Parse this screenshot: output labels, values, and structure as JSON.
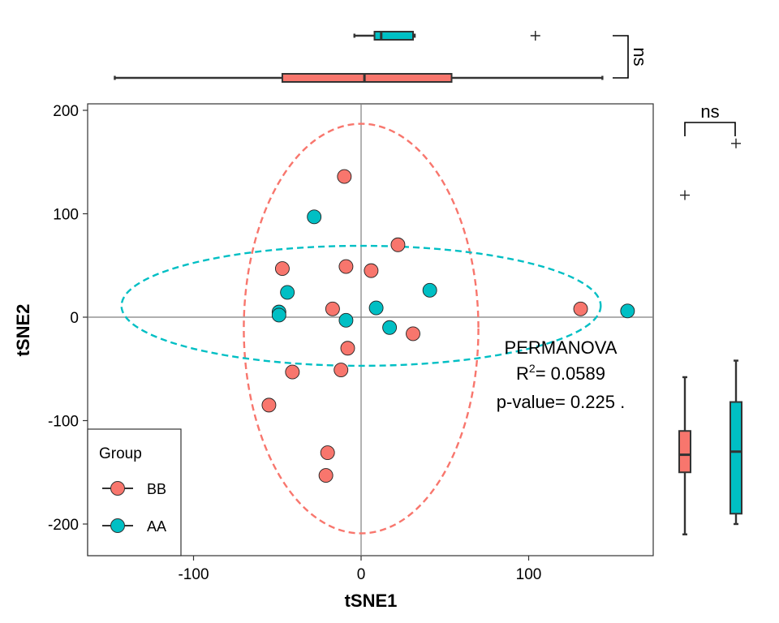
{
  "chart_data": {
    "type": "scatter",
    "title": "",
    "xlabel": "tSNE1",
    "ylabel": "tSNE2",
    "xlim": [
      -165,
      175
    ],
    "ylim": [
      -230,
      205
    ],
    "xticks": [
      -100,
      0,
      100
    ],
    "yticks": [
      -200,
      -100,
      0,
      100,
      200
    ],
    "grid": false,
    "reference_lines": {
      "x": 0,
      "y": 0
    },
    "legend": {
      "title": "Group",
      "position": "bottom-left"
    },
    "series": [
      {
        "name": "BB",
        "color": "#F8766D",
        "points": [
          {
            "x": -10,
            "y": 136
          },
          {
            "x": 22,
            "y": 70
          },
          {
            "x": -47,
            "y": 47
          },
          {
            "x": -9,
            "y": 49
          },
          {
            "x": 6,
            "y": 45
          },
          {
            "x": -17,
            "y": 8
          },
          {
            "x": 31,
            "y": -16
          },
          {
            "x": -8,
            "y": -30
          },
          {
            "x": -41,
            "y": -53
          },
          {
            "x": -12,
            "y": -51
          },
          {
            "x": -55,
            "y": -85
          },
          {
            "x": -20,
            "y": -131
          },
          {
            "x": -21,
            "y": -153
          },
          {
            "x": 131,
            "y": 8
          }
        ],
        "ellipse": {
          "cx": 0,
          "cy": -11,
          "rx": 70,
          "ry": 198,
          "angle_deg": 0
        }
      },
      {
        "name": "AA",
        "color": "#00BFC4",
        "points": [
          {
            "x": -28,
            "y": 97
          },
          {
            "x": -44,
            "y": 24
          },
          {
            "x": -49,
            "y": 5
          },
          {
            "x": -49,
            "y": 2
          },
          {
            "x": 9,
            "y": 9
          },
          {
            "x": -9,
            "y": -3
          },
          {
            "x": 17,
            "y": -10
          },
          {
            "x": 41,
            "y": 26
          },
          {
            "x": 159,
            "y": 6
          }
        ],
        "ellipse": {
          "cx": 0,
          "cy": 11,
          "rx": 143,
          "ry": 58,
          "angle_deg": 0
        }
      }
    ],
    "annotation": {
      "lines": [
        "PERMANOVA",
        "R",
        "2",
        "= 0.0589",
        "p-value= 0.225 ."
      ]
    },
    "marginal_boxplots": {
      "top": {
        "axis": "x",
        "significance": "ns",
        "boxes": [
          {
            "group": "AA",
            "color": "#00BFC4",
            "whisker_low": -4,
            "q1": 8,
            "median": 12,
            "q3": 31,
            "whisker_high": 32,
            "outliers": [
              104
            ]
          },
          {
            "group": "BB",
            "color": "#F8766D",
            "whisker_low": -147,
            "q1": -47,
            "median": 2,
            "q3": 54,
            "whisker_high": 144,
            "outliers": []
          }
        ]
      },
      "right": {
        "axis": "y",
        "significance": "ns",
        "boxes": [
          {
            "group": "BB",
            "color": "#F8766D",
            "whisker_low": -210,
            "q1": -150,
            "median": -133,
            "q3": -110,
            "whisker_high": -58,
            "outliers": [
              118
            ]
          },
          {
            "group": "AA",
            "color": "#00BFC4",
            "whisker_low": -200,
            "q1": -190,
            "median": -130,
            "q3": -82,
            "whisker_high": -42,
            "outliers": [
              168
            ]
          }
        ]
      }
    }
  }
}
